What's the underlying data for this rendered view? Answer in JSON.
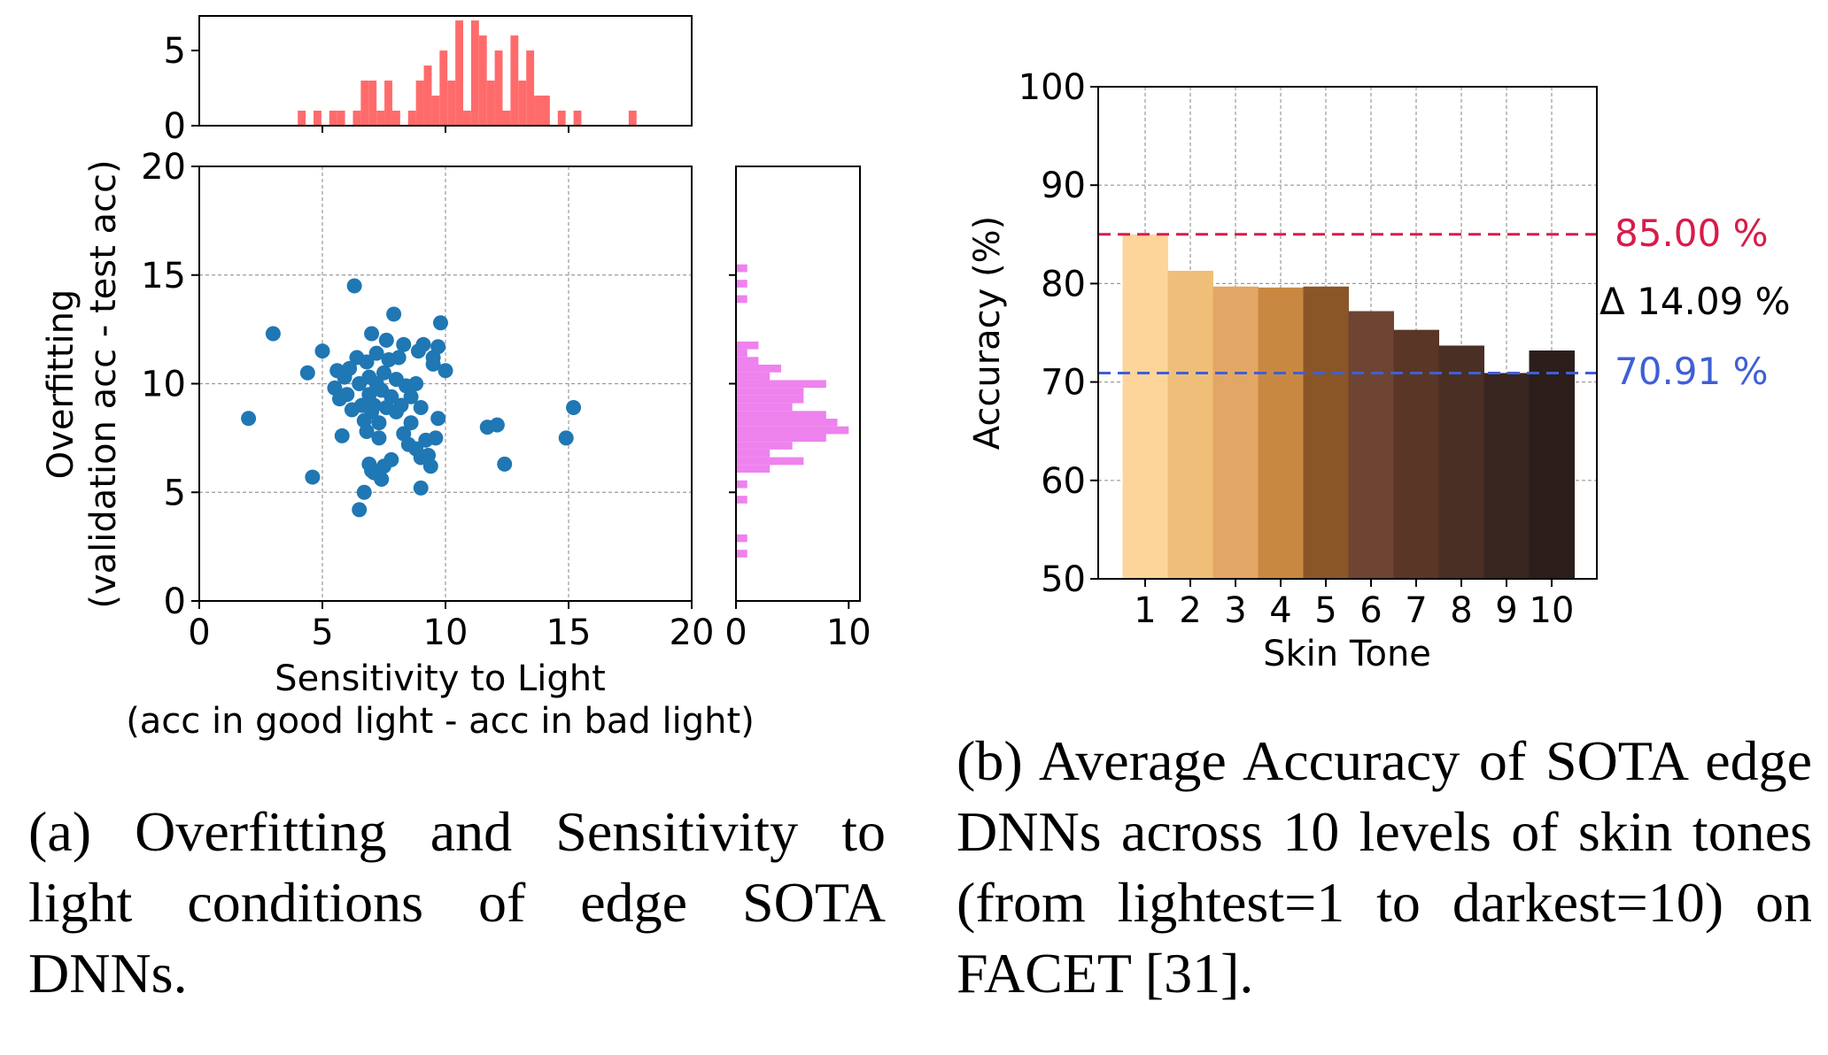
{
  "captions": {
    "a": "(a) Overfitting and Sensitivity to light conditions of edge SOTA DNNs.",
    "b": "(b) Average Accuracy of SOTA edge DNNs across 10 levels of skin tones (from lightest=1 to darkest=10) on FACET [31]."
  },
  "colors": {
    "scatter": "#1f77b4",
    "hist_top": "#ff6b6b",
    "hist_right": "#ee82ee",
    "max_line": "#d81b4a",
    "min_line": "#3f5fd6",
    "delta_text": "#000000"
  },
  "chart_data": [
    {
      "type": "scatter",
      "id": "scatter",
      "xlabel": "Sensitivity to Light",
      "xlabel_sub": "(acc in good light - acc in bad light)",
      "ylabel": "Overfitting",
      "ylabel_sub": "(validation acc - test acc)",
      "xlim": [
        0,
        20
      ],
      "ylim": [
        0,
        20
      ],
      "xticks": [
        "0",
        "5",
        "10",
        "15",
        "20"
      ],
      "yticks": [
        "0",
        "5",
        "10",
        "15",
        "20"
      ],
      "grid": true,
      "points": [
        [
          2.0,
          8.4
        ],
        [
          3.0,
          12.3
        ],
        [
          4.4,
          10.5
        ],
        [
          4.6,
          5.7
        ],
        [
          5.0,
          11.5
        ],
        [
          5.5,
          9.8
        ],
        [
          5.6,
          10.6
        ],
        [
          5.7,
          9.3
        ],
        [
          5.8,
          7.6
        ],
        [
          5.9,
          10.3
        ],
        [
          6.0,
          9.5
        ],
        [
          6.1,
          10.7
        ],
        [
          6.2,
          8.8
        ],
        [
          6.3,
          14.5
        ],
        [
          6.4,
          11.2
        ],
        [
          6.5,
          4.2
        ],
        [
          6.5,
          10.0
        ],
        [
          6.6,
          9.0
        ],
        [
          6.7,
          5.0
        ],
        [
          6.7,
          8.3
        ],
        [
          6.8,
          11.0
        ],
        [
          6.8,
          7.8
        ],
        [
          6.9,
          9.5
        ],
        [
          6.9,
          10.3
        ],
        [
          7.0,
          6.0
        ],
        [
          7.0,
          8.7
        ],
        [
          7.0,
          12.3
        ],
        [
          7.1,
          9.0
        ],
        [
          7.1,
          5.9
        ],
        [
          7.2,
          11.4
        ],
        [
          7.2,
          10.0
        ],
        [
          7.3,
          8.2
        ],
        [
          7.3,
          7.5
        ],
        [
          7.4,
          9.7
        ],
        [
          7.5,
          6.2
        ],
        [
          7.5,
          10.5
        ],
        [
          7.6,
          12.0
        ],
        [
          7.6,
          8.9
        ],
        [
          7.7,
          11.1
        ],
        [
          7.8,
          9.4
        ],
        [
          7.8,
          6.5
        ],
        [
          7.9,
          13.2
        ],
        [
          8.0,
          8.7
        ],
        [
          8.0,
          10.2
        ],
        [
          8.1,
          11.2
        ],
        [
          8.2,
          9.0
        ],
        [
          8.3,
          7.7
        ],
        [
          8.3,
          11.8
        ],
        [
          8.4,
          9.9
        ],
        [
          8.5,
          7.2
        ],
        [
          8.6,
          9.4
        ],
        [
          8.8,
          10.0
        ],
        [
          8.9,
          11.5
        ],
        [
          9.0,
          6.6
        ],
        [
          9.0,
          8.9
        ],
        [
          9.0,
          5.2
        ],
        [
          9.1,
          11.8
        ],
        [
          9.2,
          7.4
        ],
        [
          9.3,
          6.7
        ],
        [
          9.4,
          6.2
        ],
        [
          9.5,
          10.9
        ],
        [
          9.5,
          11.2
        ],
        [
          9.6,
          7.5
        ],
        [
          9.7,
          11.7
        ],
        [
          9.7,
          8.4
        ],
        [
          9.8,
          12.8
        ],
        [
          10.0,
          10.6
        ],
        [
          11.7,
          8.0
        ],
        [
          12.1,
          8.1
        ],
        [
          12.4,
          6.3
        ],
        [
          14.9,
          7.5
        ],
        [
          15.2,
          8.9
        ],
        [
          8.8,
          7.0
        ],
        [
          8.6,
          8.2
        ],
        [
          7.4,
          5.6
        ],
        [
          6.9,
          6.3
        ]
      ]
    },
    {
      "type": "histogram",
      "id": "hist_top",
      "orientation": "vertical",
      "xlim": [
        0,
        20
      ],
      "ylim": [
        0,
        7.3
      ],
      "yticks": [
        "0",
        "5"
      ],
      "bin_start": 4.0,
      "bin_width": 0.32,
      "counts": [
        1,
        0,
        1,
        0,
        1,
        1,
        0,
        1,
        3,
        3,
        1,
        3,
        1,
        0,
        1,
        3,
        4,
        2,
        5,
        3,
        7,
        1,
        7,
        6,
        3,
        5,
        1,
        6,
        3,
        5,
        2,
        2,
        0,
        1,
        0,
        1,
        0,
        0,
        0,
        0,
        0,
        0,
        1
      ]
    },
    {
      "type": "histogram",
      "id": "hist_right",
      "orientation": "horizontal",
      "xlim": [
        0,
        11
      ],
      "ylim": [
        0,
        20
      ],
      "xticks": [
        "0",
        "10"
      ],
      "bin_start": 2.0,
      "bin_width": 0.355,
      "counts": [
        1,
        0,
        1,
        0,
        0,
        0,
        0,
        1,
        0,
        1,
        0,
        3,
        6,
        3,
        5,
        8,
        10,
        9,
        8,
        5,
        6,
        6,
        8,
        3,
        4,
        2,
        1,
        2,
        0,
        0,
        0,
        0,
        0,
        1,
        0,
        1,
        0,
        1,
        0,
        0,
        0,
        0,
        0,
        0,
        0,
        0,
        0,
        0,
        0,
        0,
        0,
        0,
        0,
        0,
        0,
        0,
        0,
        0,
        0,
        0,
        0,
        0,
        0,
        0,
        0,
        0,
        0,
        0,
        0,
        0,
        0,
        0,
        0,
        0,
        0,
        0,
        0,
        0,
        0,
        0,
        0,
        0,
        0,
        0,
        0,
        0,
        0,
        0,
        0,
        0,
        0,
        0,
        0,
        0,
        0,
        0,
        0,
        0,
        0,
        0,
        0,
        0,
        0,
        0,
        0,
        0
      ]
    },
    {
      "type": "bar",
      "id": "skin_bar",
      "categories": [
        "1",
        "2",
        "3",
        "4",
        "5",
        "6",
        "7",
        "8",
        "9",
        "10"
      ],
      "values": [
        85.0,
        81.3,
        79.7,
        79.6,
        79.7,
        77.2,
        75.3,
        73.7,
        70.91,
        73.2
      ],
      "bar_colors": [
        "#fdd59a",
        "#efbf79",
        "#e2a764",
        "#c98842",
        "#8a5628",
        "#6e4433",
        "#5a3626",
        "#4a2f25",
        "#392520",
        "#2b1e1b"
      ],
      "xlabel": "Skin Tone",
      "ylabel": "Accuracy (%)",
      "ylim": [
        50,
        100
      ],
      "yticks": [
        "50",
        "60",
        "70",
        "80",
        "90",
        "100"
      ],
      "grid": true,
      "max_value": 85.0,
      "min_value": 70.91,
      "max_label": "85.00 %",
      "min_label": "70.91 %",
      "delta_label": "Δ 14.09 %"
    }
  ]
}
